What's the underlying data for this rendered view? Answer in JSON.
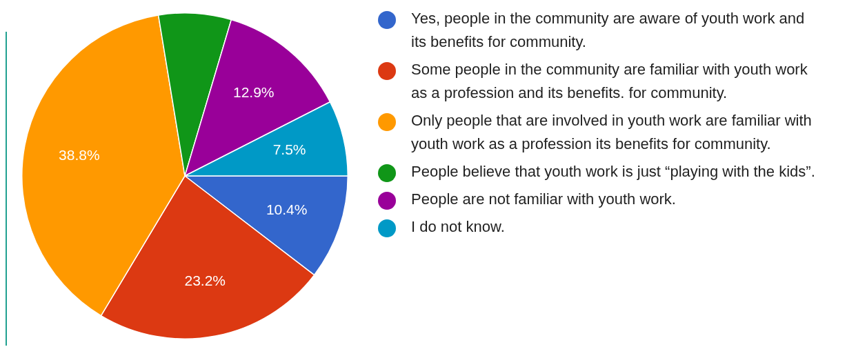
{
  "chart_data": {
    "type": "pie",
    "categories": [
      "Yes, people in the community are aware of youth work and its benefits for community.",
      "Some people in the community are familiar with youth work as a profession and its benefits. for community.",
      "Only people that are involved in youth work are familiar with youth work as a profession its benefits for community.",
      "People believe that youth work is just “playing with the kids”.",
      "People are not familiar with youth work.",
      "I do not know."
    ],
    "values": [
      10.4,
      23.2,
      38.8,
      7.2,
      12.9,
      7.5
    ],
    "value_labels": [
      "10.4%",
      "23.2%",
      "38.8%",
      null,
      "12.9%",
      "7.5%"
    ],
    "colors": [
      "#3366cc",
      "#dc3912",
      "#ff9900",
      "#109618",
      "#990099",
      "#0099c6"
    ],
    "legend": "right"
  }
}
